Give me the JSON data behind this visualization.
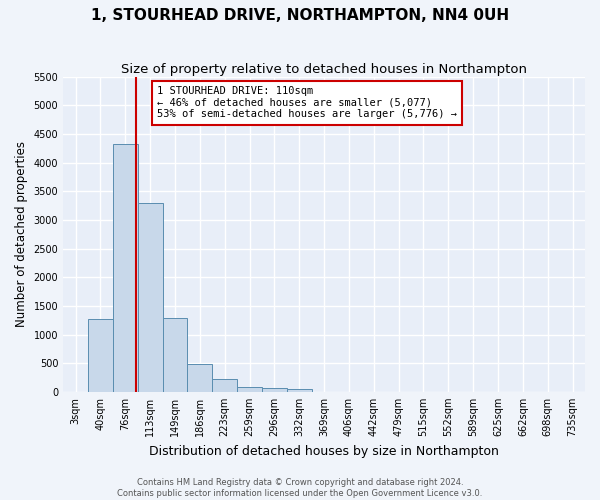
{
  "title": "1, STOURHEAD DRIVE, NORTHAMPTON, NN4 0UH",
  "subtitle": "Size of property relative to detached houses in Northampton",
  "xlabel": "Distribution of detached houses by size in Northampton",
  "ylabel": "Number of detached properties",
  "footer_line1": "Contains HM Land Registry data © Crown copyright and database right 2024.",
  "footer_line2": "Contains public sector information licensed under the Open Government Licence v3.0.",
  "bin_labels": [
    "3sqm",
    "40sqm",
    "76sqm",
    "113sqm",
    "149sqm",
    "186sqm",
    "223sqm",
    "259sqm",
    "296sqm",
    "332sqm",
    "369sqm",
    "406sqm",
    "442sqm",
    "479sqm",
    "515sqm",
    "552sqm",
    "589sqm",
    "625sqm",
    "662sqm",
    "698sqm",
    "735sqm"
  ],
  "bar_values": [
    0,
    1270,
    4330,
    3300,
    1280,
    490,
    215,
    90,
    60,
    55,
    0,
    0,
    0,
    0,
    0,
    0,
    0,
    0,
    0,
    0,
    0
  ],
  "bar_color": "#c8d8ea",
  "bar_edgecolor": "#5a8db0",
  "vline_color": "#cc0000",
  "annotation_text": "1 STOURHEAD DRIVE: 110sqm\n← 46% of detached houses are smaller (5,077)\n53% of semi-detached houses are larger (5,776) →",
  "annotation_box_color": "#cc0000",
  "ylim": [
    0,
    5500
  ],
  "yticks": [
    0,
    500,
    1000,
    1500,
    2000,
    2500,
    3000,
    3500,
    4000,
    4500,
    5000,
    5500
  ],
  "bg_color": "#f0f4fa",
  "plot_bg_color": "#e8eef8",
  "grid_color": "#ffffff",
  "title_fontsize": 11,
  "subtitle_fontsize": 9.5,
  "tick_fontsize": 7,
  "ylabel_fontsize": 8.5,
  "xlabel_fontsize": 9,
  "footer_fontsize": 6
}
